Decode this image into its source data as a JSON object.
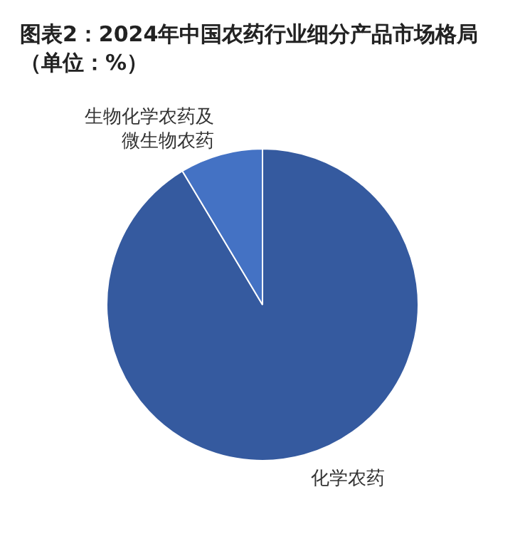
{
  "chart_data": {
    "type": "pie",
    "title": "图表2：2024年中国农药行业细分产品市场格局（单位：%）",
    "categories": [
      "化学农药",
      "生物化学农药及微生物农药"
    ],
    "values": [
      91.4,
      8.6
    ],
    "colors": [
      "#355a9f",
      "#4472c4"
    ]
  }
}
